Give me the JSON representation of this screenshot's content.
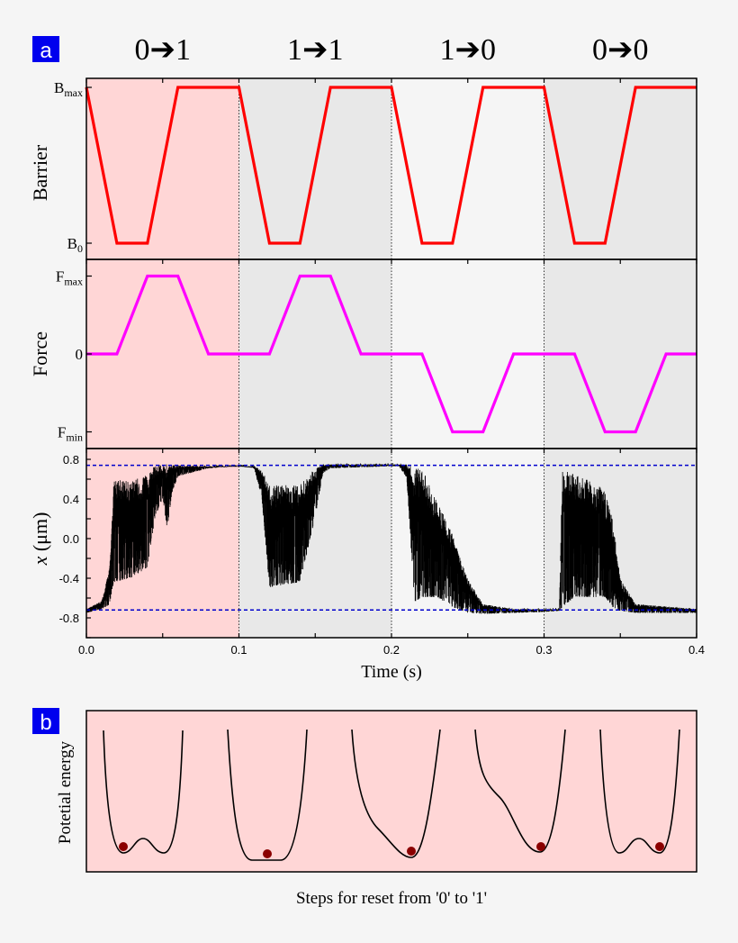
{
  "panel_a": {
    "label": "a",
    "transitions": [
      "0➔1",
      "1➔1",
      "1➔0",
      "0➔0"
    ],
    "segment_colors": [
      "#ffd6d6",
      "#e8e8e8",
      "#f5f5f5",
      "#e8e8e8"
    ],
    "label_box_color": "#0000ee"
  },
  "panel_b": {
    "label": "b",
    "ylabel": "Potetial energy",
    "xlabel": "Steps for reset from '0' to '1'",
    "background": "#ffd6d6",
    "particle_color": "#8b0000",
    "steps": [
      "double-well-particle-left",
      "single-well-flat",
      "tilted-well-right",
      "strongly-tilted-well-right",
      "double-well-particle-right"
    ]
  },
  "chart_data": [
    {
      "type": "line",
      "ylabel": "Barrier",
      "yticks": [
        {
          "main": "B",
          "sub": "max",
          "value": 1
        },
        {
          "main": "B",
          "sub": "0",
          "value": 0
        }
      ],
      "color": "#ff0000",
      "x": [
        0,
        0.02,
        0.04,
        0.06,
        0.1,
        0.12,
        0.14,
        0.16,
        0.2,
        0.22,
        0.24,
        0.26,
        0.3,
        0.32,
        0.34,
        0.36,
        0.4
      ],
      "y": [
        1,
        0,
        0,
        1,
        1,
        0,
        0,
        1,
        1,
        0,
        0,
        1,
        1,
        0,
        0,
        1,
        1
      ],
      "xlim": [
        0,
        0.4
      ]
    },
    {
      "type": "line",
      "ylabel": "Force",
      "yticks": [
        {
          "main": "F",
          "sub": "max",
          "value": 1
        },
        {
          "main": "0",
          "sub": "",
          "value": 0
        },
        {
          "main": "F",
          "sub": "min",
          "value": -1
        }
      ],
      "color": "#ff00ff",
      "x": [
        0,
        0.02,
        0.04,
        0.06,
        0.08,
        0.12,
        0.14,
        0.16,
        0.18,
        0.22,
        0.24,
        0.26,
        0.28,
        0.32,
        0.34,
        0.36,
        0.38,
        0.4
      ],
      "y": [
        0,
        0,
        1,
        1,
        0,
        0,
        1,
        1,
        0,
        0,
        -1,
        -1,
        0,
        0,
        -1,
        -1,
        0,
        0
      ],
      "xlim": [
        0,
        0.4
      ]
    },
    {
      "type": "line",
      "ylabel_italic": "x",
      "ylabel": " (μm)",
      "xlabel": "Time (s)",
      "xlim": [
        0,
        0.4
      ],
      "ylim": [
        -1.0,
        0.9
      ],
      "xticks": [
        "0.0",
        "0.1",
        "0.2",
        "0.3",
        "0.4"
      ],
      "yticks": [
        "0.8",
        "0.4",
        "0.0",
        "-0.4",
        "-0.8"
      ],
      "color": "#000000",
      "reference_lines": {
        "values": [
          0.74,
          -0.72
        ],
        "color": "#0000cc",
        "style": "dashed"
      },
      "trace_envelope": {
        "t": [
          0,
          0.01,
          0.015,
          0.018,
          0.03,
          0.04,
          0.045,
          0.05,
          0.053,
          0.056,
          0.06,
          0.08,
          0.1,
          0.11,
          0.115,
          0.12,
          0.14,
          0.15,
          0.155,
          0.16,
          0.2,
          0.205,
          0.21,
          0.215,
          0.22,
          0.23,
          0.24,
          0.25,
          0.26,
          0.28,
          0.3,
          0.31,
          0.312,
          0.32,
          0.33,
          0.34,
          0.345,
          0.35,
          0.36,
          0.4
        ],
        "upper": [
          -0.7,
          -0.62,
          -0.3,
          0.6,
          0.6,
          0.65,
          0.75,
          0.76,
          0.76,
          0.76,
          0.75,
          0.74,
          0.74,
          0.74,
          0.7,
          0.55,
          0.55,
          0.72,
          0.76,
          0.76,
          0.76,
          0.76,
          0.76,
          0.74,
          0.72,
          0.4,
          0.05,
          -0.4,
          -0.65,
          -0.7,
          -0.7,
          -0.7,
          0.73,
          0.65,
          0.6,
          0.5,
          0.2,
          -0.4,
          -0.65,
          -0.7
        ],
        "lower": [
          -0.76,
          -0.72,
          -0.68,
          -0.45,
          -0.4,
          -0.3,
          0.2,
          0.4,
          0.08,
          0.45,
          0.62,
          0.7,
          0.72,
          0.7,
          0.4,
          -0.5,
          -0.45,
          0.2,
          0.65,
          0.7,
          0.72,
          0.72,
          0.6,
          -0.65,
          -0.6,
          -0.6,
          -0.7,
          -0.76,
          -0.77,
          -0.76,
          -0.75,
          -0.74,
          -0.7,
          -0.6,
          -0.6,
          -0.6,
          -0.7,
          -0.74,
          -0.76,
          -0.76
        ]
      }
    }
  ]
}
